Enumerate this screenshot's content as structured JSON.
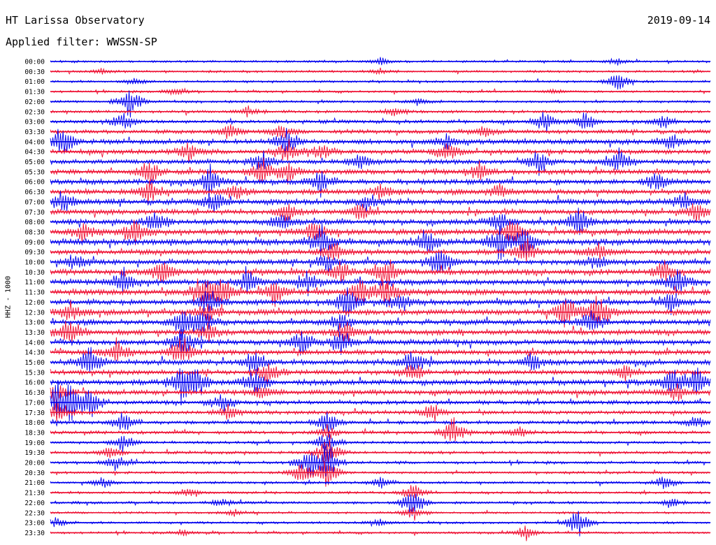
{
  "header": {
    "station": "HT Larissa Observatory",
    "date": "2019-09-14",
    "filter": "Applied filter: WWSSN-SP"
  },
  "chart_data": {
    "type": "line",
    "title": "HT Larissa Observatory",
    "subtitle": "Applied filter: WWSSN-SP",
    "ylabel": "HHZ - 1000",
    "xlabel": "",
    "grid": false,
    "colors": {
      "odd_trace": "#0000ee",
      "even_trace": "#ee1133"
    },
    "series": [
      {
        "name": "00:00",
        "activity": 0.25,
        "events": [
          [
            0.5,
            0.2
          ],
          [
            0.86,
            0.15
          ]
        ]
      },
      {
        "name": "00:30",
        "activity": 0.25,
        "events": [
          [
            0.08,
            0.15
          ],
          [
            0.5,
            0.15
          ]
        ]
      },
      {
        "name": "01:00",
        "activity": 0.25,
        "events": [
          [
            0.86,
            0.6
          ],
          [
            0.13,
            0.2
          ]
        ]
      },
      {
        "name": "01:30",
        "activity": 0.25,
        "events": [
          [
            0.19,
            0.25
          ],
          [
            0.76,
            0.15
          ]
        ]
      },
      {
        "name": "02:00",
        "activity": 0.3,
        "events": [
          [
            0.12,
            0.9
          ],
          [
            0.56,
            0.2
          ]
        ]
      },
      {
        "name": "02:30",
        "activity": 0.35,
        "events": [
          [
            0.3,
            0.3
          ],
          [
            0.52,
            0.25
          ]
        ]
      },
      {
        "name": "03:00",
        "activity": 0.45,
        "events": [
          [
            0.11,
            0.55
          ],
          [
            0.75,
            0.6
          ],
          [
            0.81,
            0.55
          ],
          [
            0.93,
            0.4
          ]
        ]
      },
      {
        "name": "03:30",
        "activity": 0.55,
        "events": [
          [
            0.27,
            0.5
          ],
          [
            0.35,
            0.4
          ],
          [
            0.66,
            0.35
          ]
        ]
      },
      {
        "name": "04:00",
        "activity": 0.7,
        "events": [
          [
            0.02,
            0.9
          ],
          [
            0.36,
            0.8
          ],
          [
            0.6,
            0.45
          ],
          [
            0.94,
            0.4
          ]
        ]
      },
      {
        "name": "04:30",
        "activity": 0.65,
        "events": [
          [
            0.21,
            0.5
          ],
          [
            0.36,
            0.7
          ],
          [
            0.41,
            0.5
          ],
          [
            0.6,
            0.6
          ]
        ]
      },
      {
        "name": "05:00",
        "activity": 0.65,
        "events": [
          [
            0.32,
            0.6
          ],
          [
            0.47,
            0.5
          ],
          [
            0.74,
            0.7
          ],
          [
            0.86,
            0.8
          ]
        ]
      },
      {
        "name": "05:30",
        "activity": 0.7,
        "events": [
          [
            0.15,
            0.8
          ],
          [
            0.32,
            0.7
          ],
          [
            0.36,
            0.6
          ],
          [
            0.65,
            0.5
          ]
        ]
      },
      {
        "name": "06:00",
        "activity": 0.7,
        "events": [
          [
            0.24,
            0.9
          ],
          [
            0.41,
            0.7
          ],
          [
            0.92,
            0.55
          ]
        ]
      },
      {
        "name": "06:30",
        "activity": 0.75,
        "events": [
          [
            0.15,
            0.6
          ],
          [
            0.28,
            0.5
          ],
          [
            0.5,
            0.5
          ],
          [
            0.68,
            0.4
          ]
        ]
      },
      {
        "name": "07:00",
        "activity": 0.8,
        "events": [
          [
            0.02,
            0.7
          ],
          [
            0.25,
            0.6
          ],
          [
            0.48,
            0.5
          ],
          [
            0.96,
            0.5
          ]
        ]
      },
      {
        "name": "07:30",
        "activity": 0.7,
        "events": [
          [
            0.36,
            0.5
          ],
          [
            0.47,
            0.45
          ],
          [
            0.98,
            0.6
          ]
        ]
      },
      {
        "name": "08:00",
        "activity": 0.75,
        "events": [
          [
            0.16,
            0.6
          ],
          [
            0.35,
            0.5
          ],
          [
            0.68,
            0.6
          ],
          [
            0.8,
            0.9
          ]
        ]
      },
      {
        "name": "08:30",
        "activity": 0.8,
        "events": [
          [
            0.05,
            0.5
          ],
          [
            0.13,
            0.8
          ],
          [
            0.4,
            0.6
          ],
          [
            0.7,
            0.7
          ]
        ]
      },
      {
        "name": "09:00",
        "activity": 0.85,
        "events": [
          [
            0.41,
            0.9
          ],
          [
            0.57,
            0.7
          ],
          [
            0.68,
            1.0
          ],
          [
            0.72,
            1.0
          ]
        ]
      },
      {
        "name": "09:30",
        "activity": 0.75,
        "events": [
          [
            0.43,
            0.7
          ],
          [
            0.72,
            0.8
          ],
          [
            0.83,
            0.5
          ]
        ]
      },
      {
        "name": "10:00",
        "activity": 0.75,
        "events": [
          [
            0.04,
            0.5
          ],
          [
            0.42,
            0.6
          ],
          [
            0.59,
            0.9
          ],
          [
            0.83,
            0.5
          ]
        ]
      },
      {
        "name": "10:30",
        "activity": 0.8,
        "events": [
          [
            0.17,
            0.8
          ],
          [
            0.44,
            0.6
          ],
          [
            0.51,
            0.9
          ],
          [
            0.93,
            0.6
          ]
        ]
      },
      {
        "name": "11:00",
        "activity": 0.8,
        "events": [
          [
            0.11,
            0.6
          ],
          [
            0.3,
            0.6
          ],
          [
            0.39,
            0.7
          ],
          [
            0.95,
            0.8
          ]
        ]
      },
      {
        "name": "11:30",
        "activity": 0.85,
        "events": [
          [
            0.23,
            1.0
          ],
          [
            0.26,
            1.0
          ],
          [
            0.34,
            0.7
          ],
          [
            0.47,
            0.8
          ],
          [
            0.51,
            1.0
          ]
        ]
      },
      {
        "name": "12:00",
        "activity": 0.75,
        "events": [
          [
            0.24,
            0.8
          ],
          [
            0.45,
            0.9
          ],
          [
            0.53,
            0.6
          ],
          [
            0.94,
            0.6
          ]
        ]
      },
      {
        "name": "12:30",
        "activity": 0.8,
        "events": [
          [
            0.03,
            0.5
          ],
          [
            0.24,
            0.6
          ],
          [
            0.78,
            1.0
          ],
          [
            0.83,
            1.0
          ]
        ]
      },
      {
        "name": "13:00",
        "activity": 0.75,
        "events": [
          [
            0.2,
            0.9
          ],
          [
            0.23,
            0.8
          ],
          [
            0.44,
            0.6
          ],
          [
            0.82,
            0.7
          ]
        ]
      },
      {
        "name": "13:30",
        "activity": 0.75,
        "events": [
          [
            0.03,
            0.9
          ],
          [
            0.24,
            0.6
          ],
          [
            0.45,
            0.6
          ]
        ]
      },
      {
        "name": "14:00",
        "activity": 0.75,
        "events": [
          [
            0.2,
            0.9
          ],
          [
            0.38,
            0.7
          ],
          [
            0.44,
            0.8
          ]
        ]
      },
      {
        "name": "14:30",
        "activity": 0.7,
        "events": [
          [
            0.1,
            0.7
          ],
          [
            0.2,
            0.9
          ]
        ]
      },
      {
        "name": "15:00",
        "activity": 0.75,
        "events": [
          [
            0.06,
            0.9
          ],
          [
            0.31,
            0.7
          ],
          [
            0.55,
            0.7
          ],
          [
            0.73,
            0.5
          ]
        ]
      },
      {
        "name": "15:30",
        "activity": 0.7,
        "events": [
          [
            0.33,
            0.6
          ],
          [
            0.55,
            0.6
          ],
          [
            0.87,
            0.4
          ]
        ]
      },
      {
        "name": "16:00",
        "activity": 0.8,
        "events": [
          [
            0.2,
            1.0
          ],
          [
            0.22,
            0.9
          ],
          [
            0.31,
            0.7
          ],
          [
            0.94,
            0.8
          ],
          [
            0.98,
            0.8
          ]
        ]
      },
      {
        "name": "16:30",
        "activity": 0.7,
        "events": [
          [
            0.01,
            0.7
          ],
          [
            0.32,
            0.5
          ],
          [
            0.95,
            0.5
          ]
        ]
      },
      {
        "name": "17:00",
        "activity": 0.55,
        "events": [
          [
            0.01,
            1.0
          ],
          [
            0.03,
            1.0
          ],
          [
            0.06,
            0.9
          ],
          [
            0.26,
            0.6
          ]
        ]
      },
      {
        "name": "17:30",
        "activity": 0.5,
        "events": [
          [
            0.01,
            0.7
          ],
          [
            0.27,
            0.5
          ],
          [
            0.58,
            0.5
          ]
        ]
      },
      {
        "name": "18:00",
        "activity": 0.45,
        "events": [
          [
            0.11,
            0.6
          ],
          [
            0.42,
            0.8
          ],
          [
            0.98,
            0.4
          ]
        ]
      },
      {
        "name": "18:30",
        "activity": 0.4,
        "events": [
          [
            0.42,
            0.4
          ],
          [
            0.61,
            0.8
          ],
          [
            0.71,
            0.3
          ]
        ]
      },
      {
        "name": "19:00",
        "activity": 0.35,
        "events": [
          [
            0.11,
            0.5
          ],
          [
            0.42,
            0.7
          ]
        ]
      },
      {
        "name": "19:30",
        "activity": 0.35,
        "events": [
          [
            0.09,
            0.4
          ],
          [
            0.42,
            0.9
          ]
        ]
      },
      {
        "name": "20:00",
        "activity": 0.35,
        "events": [
          [
            0.1,
            0.45
          ],
          [
            0.39,
            0.8
          ],
          [
            0.42,
            1.0
          ]
        ]
      },
      {
        "name": "20:30",
        "activity": 0.3,
        "events": [
          [
            0.38,
            0.7
          ],
          [
            0.42,
            0.9
          ]
        ]
      },
      {
        "name": "21:00",
        "activity": 0.3,
        "events": [
          [
            0.08,
            0.3
          ],
          [
            0.5,
            0.3
          ],
          [
            0.93,
            0.4
          ]
        ]
      },
      {
        "name": "21:30",
        "activity": 0.3,
        "events": [
          [
            0.55,
            0.5
          ],
          [
            0.21,
            0.25
          ]
        ]
      },
      {
        "name": "22:00",
        "activity": 0.3,
        "events": [
          [
            0.55,
            0.9
          ],
          [
            0.26,
            0.3
          ],
          [
            0.94,
            0.25
          ]
        ]
      },
      {
        "name": "22:30",
        "activity": 0.25,
        "events": [
          [
            0.55,
            0.4
          ],
          [
            0.28,
            0.2
          ]
        ]
      },
      {
        "name": "23:00",
        "activity": 0.25,
        "events": [
          [
            0.8,
            0.9
          ],
          [
            0.01,
            0.25
          ],
          [
            0.5,
            0.2
          ]
        ]
      },
      {
        "name": "23:30",
        "activity": 0.25,
        "events": [
          [
            0.72,
            0.4
          ],
          [
            0.2,
            0.15
          ]
        ]
      }
    ]
  }
}
